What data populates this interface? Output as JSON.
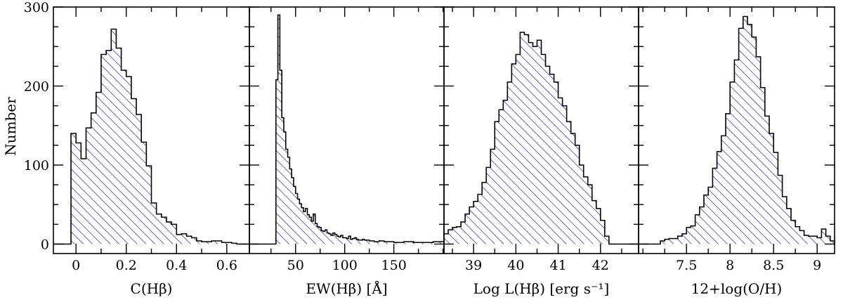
{
  "chart_data": {
    "type": "bar",
    "ylabel": "Number",
    "ylim": [
      -12,
      300
    ],
    "yticks": [
      0,
      100,
      200,
      300
    ],
    "fill": "hatched",
    "hatch_color": "#1a1ab8",
    "outline_color": "#000000",
    "panels": [
      {
        "id": "c-hbeta",
        "xlabel": "C(Hβ)",
        "xlim": [
          -0.09,
          0.69
        ],
        "xticks": [
          0,
          0.2,
          0.4,
          0.6
        ],
        "xtick_labels": [
          "0",
          "0.2",
          "0.4",
          "0.6"
        ],
        "x_minor": 0.1,
        "baseline": {
          "left": -0.09,
          "right": 0.69,
          "value": 0
        },
        "edges": [
          -0.02,
          0.0,
          0.02,
          0.04,
          0.06,
          0.08,
          0.1,
          0.12,
          0.14,
          0.16,
          0.18,
          0.2,
          0.22,
          0.24,
          0.26,
          0.28,
          0.3,
          0.32,
          0.34,
          0.36,
          0.38,
          0.4,
          0.42,
          0.44,
          0.46,
          0.48,
          0.5,
          0.52,
          0.54,
          0.56,
          0.58,
          0.6,
          0.62,
          0.64
        ],
        "values": [
          140,
          128,
          108,
          147,
          166,
          192,
          240,
          245,
          272,
          248,
          220,
          212,
          184,
          164,
          129,
          99,
          52,
          38,
          34,
          28,
          25,
          12,
          13,
          10,
          8,
          4,
          3,
          3,
          4,
          4,
          2,
          2,
          1
        ]
      },
      {
        "id": "ew-hbeta",
        "xlabel": "EW(Hβ) [Å]",
        "xlim": [
          3,
          201
        ],
        "xticks": [
          50,
          100,
          150
        ],
        "xtick_labels": [
          "50",
          "100",
          "150"
        ],
        "x_minor": 25,
        "baseline": {
          "left": 3,
          "right": 201,
          "value": 0
        },
        "edges": [
          30,
          32,
          34,
          36,
          38,
          40,
          42,
          44,
          46,
          48,
          50,
          52,
          54,
          56,
          58,
          60,
          62,
          64,
          66,
          68,
          70,
          72,
          74,
          76,
          78,
          80,
          82,
          84,
          86,
          88,
          90,
          92,
          94,
          96,
          98,
          100,
          102,
          104,
          106,
          108,
          110,
          112,
          114,
          116,
          118,
          120,
          125,
          130,
          135,
          140,
          145,
          150,
          160,
          170,
          180,
          190,
          201
        ],
        "values": [
          208,
          290,
          220,
          160,
          142,
          120,
          110,
          95,
          84,
          73,
          64,
          57,
          51,
          46,
          41,
          45,
          37,
          34,
          29,
          38,
          26,
          22,
          21,
          17,
          16,
          18,
          14,
          13,
          11,
          14,
          12,
          10,
          9,
          11,
          8,
          8,
          7,
          10,
          6,
          7,
          8,
          6,
          5,
          5,
          6,
          5,
          4,
          3,
          4,
          3,
          3,
          2,
          3,
          2,
          2,
          3
        ]
      },
      {
        "id": "log-l-hbeta",
        "xlabel": "Log L(Hβ) [erg s⁻¹]",
        "xlim": [
          38.3,
          42.9
        ],
        "xticks": [
          39,
          40,
          41,
          42
        ],
        "xtick_labels": [
          "39",
          "40",
          "41",
          "42"
        ],
        "x_minor": 0.5,
        "baseline": {
          "left": 38.3,
          "right": 42.9,
          "value": 0
        },
        "edges": [
          38.3,
          38.4,
          38.5,
          38.6,
          38.7,
          38.8,
          38.9,
          39.0,
          39.1,
          39.2,
          39.3,
          39.4,
          39.5,
          39.6,
          39.7,
          39.8,
          39.9,
          40.0,
          40.1,
          40.2,
          40.3,
          40.4,
          40.5,
          40.6,
          40.7,
          40.8,
          40.9,
          41.0,
          41.1,
          41.2,
          41.3,
          41.4,
          41.5,
          41.6,
          41.7,
          41.8,
          41.9,
          42.0,
          42.1,
          42.2
        ],
        "values": [
          13,
          18,
          21,
          22,
          28,
          38,
          47,
          54,
          63,
          78,
          97,
          120,
          155,
          170,
          182,
          205,
          228,
          240,
          268,
          265,
          255,
          250,
          258,
          240,
          225,
          215,
          205,
          185,
          175,
          155,
          140,
          125,
          100,
          85,
          75,
          55,
          45,
          30,
          10
        ]
      },
      {
        "id": "oxygen-abundance",
        "xlabel": "12+log(O/H)",
        "xlim": [
          6.95,
          9.2
        ],
        "xticks": [
          7.5,
          8,
          8.5,
          9
        ],
        "xtick_labels": [
          "7.5",
          "8",
          "8.5",
          "9"
        ],
        "x_minor": 0.25,
        "baseline": {
          "left": 6.95,
          "right": 9.2,
          "value": 0
        },
        "edges": [
          7.2,
          7.25,
          7.3,
          7.35,
          7.4,
          7.45,
          7.5,
          7.55,
          7.6,
          7.65,
          7.7,
          7.75,
          7.8,
          7.85,
          7.9,
          7.95,
          8.0,
          8.05,
          8.1,
          8.15,
          8.2,
          8.25,
          8.3,
          8.35,
          8.4,
          8.45,
          8.5,
          8.55,
          8.6,
          8.65,
          8.7,
          8.75,
          8.8,
          8.85,
          8.9,
          8.95,
          9.0,
          9.05,
          9.1,
          9.15,
          9.2
        ],
        "values": [
          4,
          6,
          7,
          7,
          10,
          13,
          21,
          23,
          37,
          47,
          62,
          72,
          96,
          117,
          137,
          165,
          205,
          233,
          273,
          288,
          278,
          262,
          237,
          198,
          162,
          140,
          116,
          87,
          60,
          45,
          30,
          22,
          17,
          11,
          10,
          10,
          8,
          19,
          10,
          4
        ]
      }
    ]
  }
}
